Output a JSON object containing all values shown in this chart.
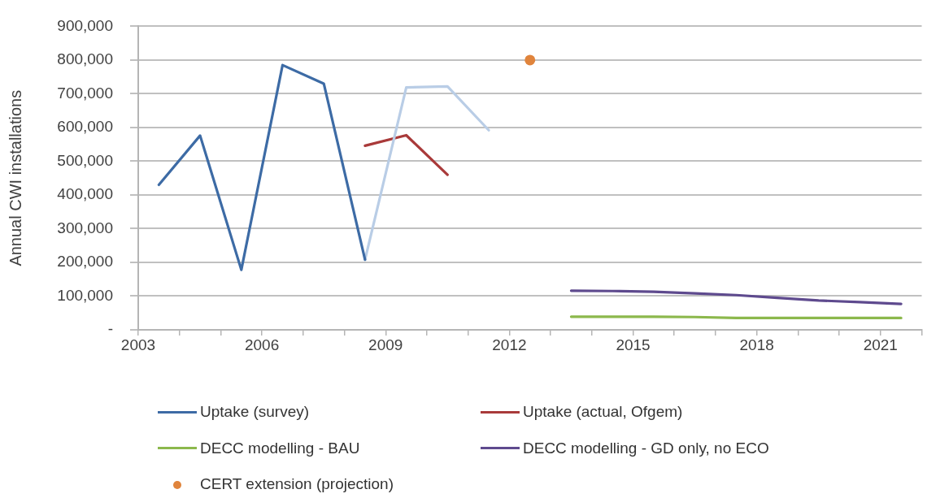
{
  "chart_data": {
    "type": "line",
    "ylabel": "Annual CWI installations",
    "xlim": [
      2003,
      2022
    ],
    "xticks": [
      2003,
      {
        "value": 2004,
        "label": null
      },
      {
        "value": 2005,
        "label": null
      },
      2006,
      {
        "value": 2007,
        "label": null
      },
      {
        "value": 2008,
        "label": null
      },
      2009,
      {
        "value": 2010,
        "label": null
      },
      {
        "value": 2011,
        "label": null
      },
      2012,
      {
        "value": 2013,
        "label": null
      },
      {
        "value": 2014,
        "label": null
      },
      2015,
      {
        "value": 2016,
        "label": null
      },
      {
        "value": 2017,
        "label": null
      },
      2018,
      {
        "value": 2019,
        "label": null
      },
      {
        "value": 2020,
        "label": null
      },
      2021,
      {
        "value": 2022,
        "label": null
      }
    ],
    "ylim": [
      0,
      900000
    ],
    "yticks": [
      {
        "value": 0,
        "label": "-"
      },
      {
        "value": 100000,
        "label": "100,000"
      },
      {
        "value": 200000,
        "label": "200,000"
      },
      {
        "value": 300000,
        "label": "300,000"
      },
      {
        "value": 400000,
        "label": "400,000"
      },
      {
        "value": 500000,
        "label": "500,000"
      },
      {
        "value": 600000,
        "label": "600,000"
      },
      {
        "value": 700000,
        "label": "700,000"
      },
      {
        "value": 800000,
        "label": "800,000"
      },
      {
        "value": 900000,
        "label": "900,000"
      }
    ],
    "grid": "y",
    "legend": "bottom",
    "marker": "none",
    "series": [
      {
        "name": "Uptake (survey)",
        "color": "#3d6ba5",
        "x": [
          2003.5,
          2004.5,
          2005.5,
          2006.5,
          2007.5,
          2008.5
        ],
        "values": [
          430000,
          576000,
          178000,
          785000,
          730000,
          208000
        ]
      },
      {
        "color": "#b9cde6",
        "x": [
          2008.5,
          2009.5,
          2010.5,
          2011.5
        ],
        "values": [
          208000,
          719000,
          722000,
          592000
        ]
      },
      {
        "name": "Uptake (actual, Ofgem)",
        "color": "#a93a3a",
        "x": [
          2008.5,
          2009.5,
          2010.5
        ],
        "values": [
          546000,
          577000,
          460000
        ]
      },
      {
        "name": "DECC modelling - BAU",
        "color": "#8cb84c",
        "x": [
          2013.5,
          2014.5,
          2015.5,
          2016.5,
          2017.5,
          2018.5,
          2019.5,
          2020.5,
          2021.5
        ],
        "values": [
          39000,
          39000,
          39000,
          38000,
          35000,
          35000,
          35000,
          35000,
          35000
        ]
      },
      {
        "name": "DECC modelling - GD only, no ECO",
        "color": "#5e4a8e",
        "x": [
          2013.5,
          2014.5,
          2015.5,
          2016.5,
          2017.5,
          2018.5,
          2019.5,
          2020.5,
          2021.5
        ],
        "values": [
          116000,
          115000,
          113000,
          108000,
          103000,
          95000,
          87000,
          82000,
          77000
        ]
      },
      {
        "name": "CERT extension (projection)",
        "type": "scatter",
        "marker": "circle",
        "color": "#e0843c",
        "x": [
          2012.5
        ],
        "values": [
          800000
        ]
      }
    ]
  }
}
